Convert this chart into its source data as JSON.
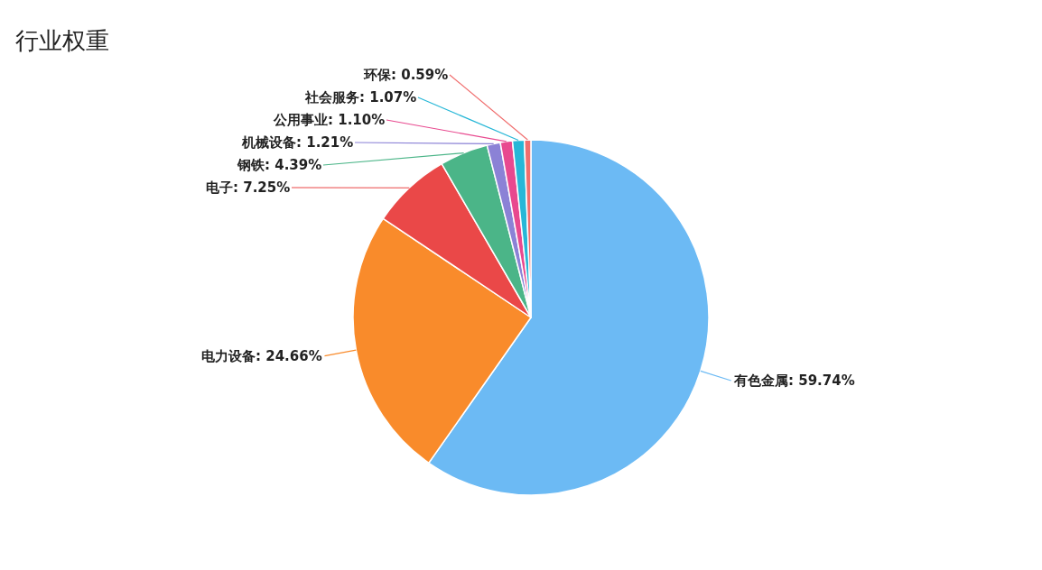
{
  "chart_data": {
    "type": "pie",
    "title": "行业权重",
    "categories": [
      "有色金属",
      "电力设备",
      "电子",
      "钢铁",
      "机械设备",
      "公用事业",
      "社会服务",
      "环保"
    ],
    "values": [
      59.74,
      24.66,
      7.25,
      4.39,
      1.21,
      1.1,
      1.07,
      0.59
    ],
    "value_labels": [
      "59.74%",
      "24.66%",
      "7.25%",
      "4.39%",
      "1.21%",
      "1.10%",
      "1.07%",
      "0.59%"
    ],
    "colors": [
      "#6cbaf4",
      "#f98b2b",
      "#ea4848",
      "#4bb588",
      "#8b82d6",
      "#e8498f",
      "#27b7d7",
      "#f06e6e"
    ],
    "legend": false
  }
}
